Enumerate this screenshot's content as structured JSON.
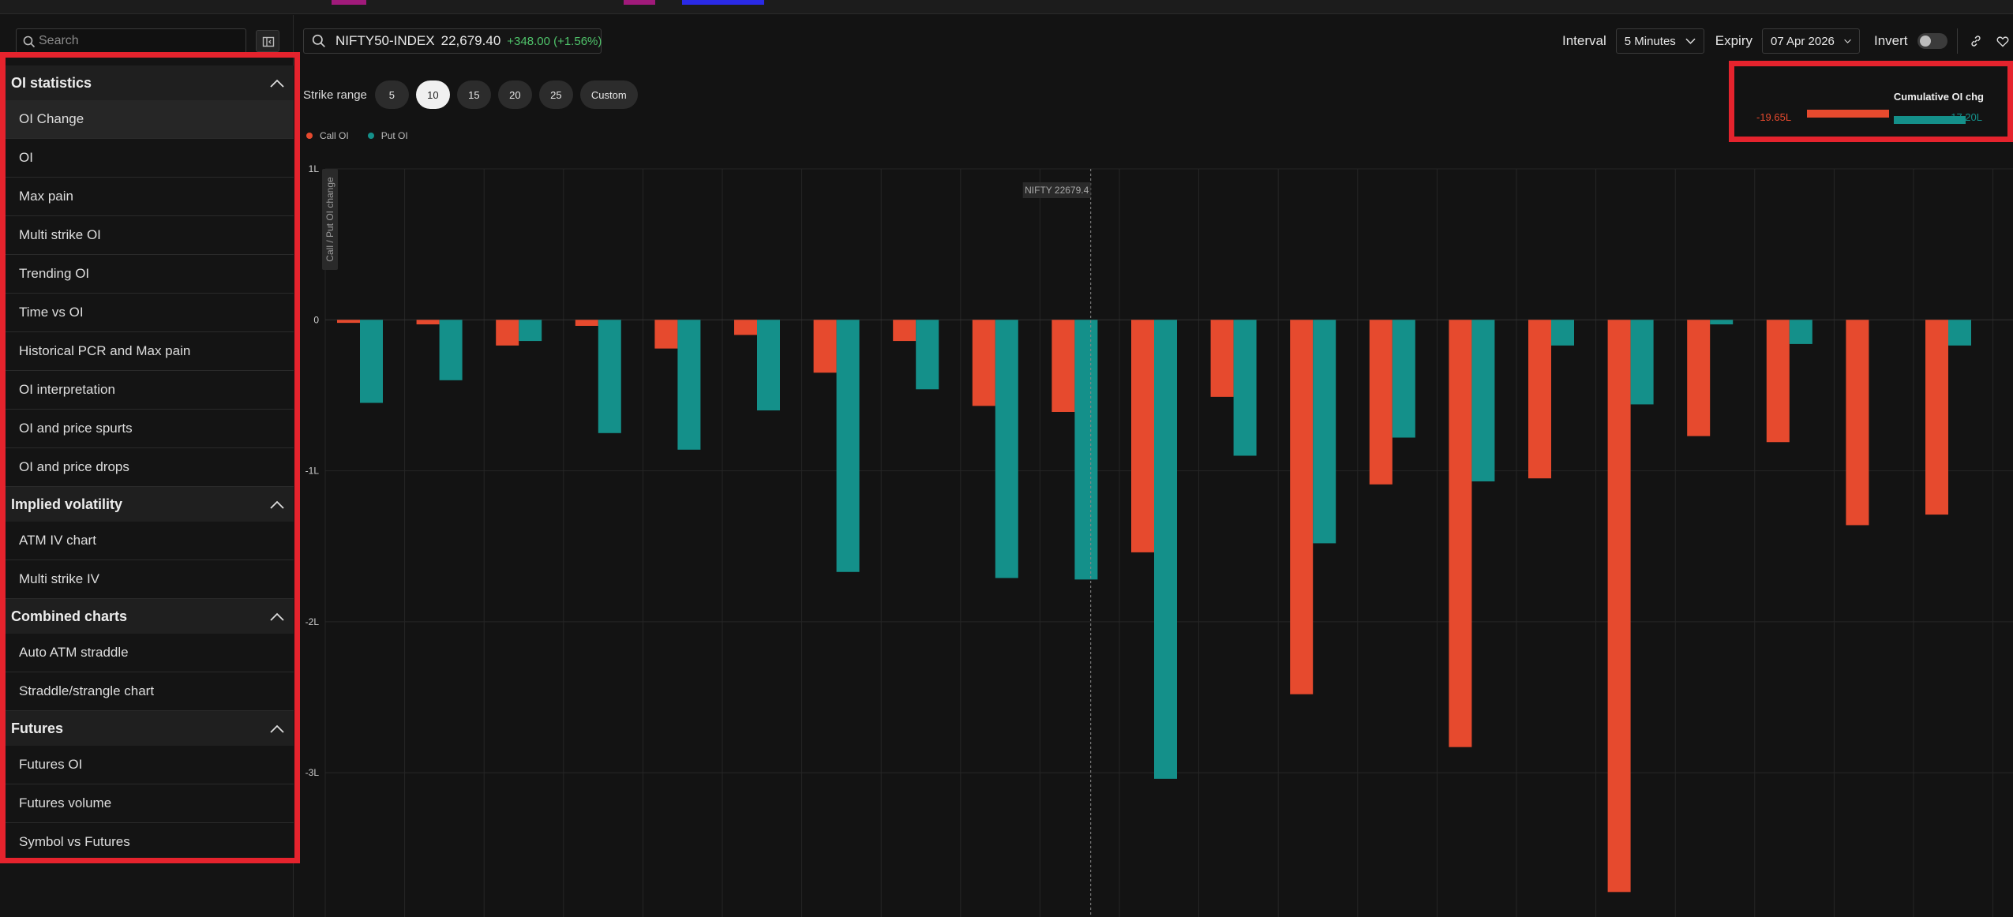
{
  "sidebar": {
    "search_placeholder": "Search",
    "sections": [
      {
        "title": "OI statistics",
        "items": [
          "OI Change",
          "OI",
          "Max pain",
          "Multi strike OI",
          "Trending OI",
          "Time vs OI",
          "Historical PCR and Max pain",
          "OI interpretation",
          "OI and price spurts",
          "OI and price drops"
        ]
      },
      {
        "title": "Implied volatility",
        "items": [
          "ATM IV chart",
          "Multi strike IV"
        ]
      },
      {
        "title": "Combined charts",
        "items": [
          "Auto ATM straddle",
          "Straddle/strangle chart"
        ]
      },
      {
        "title": "Futures",
        "items": [
          "Futures OI",
          "Futures volume",
          "Symbol vs Futures"
        ]
      }
    ],
    "active_item": "OI Change"
  },
  "header": {
    "symbol": "NIFTY50-INDEX",
    "price": "22,679.40",
    "change": "+348.00 (+1.56%)",
    "interval_label": "Interval",
    "interval_value": "5 Minutes",
    "expiry_label": "Expiry",
    "expiry_value": "07 Apr 2026",
    "invert_label": "Invert",
    "invert_on": false
  },
  "strike_range": {
    "label": "Strike range",
    "options": [
      "5",
      "10",
      "15",
      "20",
      "25",
      "Custom"
    ],
    "selected": "10"
  },
  "legend": {
    "call": "Call OI",
    "put": "Put OI"
  },
  "cumulative": {
    "title": "Cumulative OI chg",
    "call_value": "-19.65L",
    "put_value": "-17.20L",
    "call_fraction": 1.0,
    "put_fraction": 0.875
  },
  "colors": {
    "call": "#e64a2e",
    "put": "#14908a",
    "highlight": "#e5232d",
    "positive": "#4fc36a"
  },
  "chart_data": {
    "type": "bar",
    "ylabel": "Call / Put OI change",
    "ylim": [
      -4,
      1
    ],
    "yticks": [
      1,
      0,
      -1,
      -2,
      -3,
      -4
    ],
    "ytick_labels": [
      "1L",
      "0",
      "-1L",
      "-2L",
      "-3L",
      "-4L"
    ],
    "spot_label": "NIFTY 22679.4",
    "spot_after_index": 9.5,
    "categories_count": 21,
    "series": [
      {
        "name": "Call OI",
        "values": [
          -0.02,
          -0.03,
          -0.17,
          -0.04,
          -0.19,
          -0.1,
          -0.35,
          -0.14,
          -0.57,
          -0.61,
          -1.54,
          -0.51,
          -2.48,
          -1.09,
          -2.83,
          -1.05,
          -3.79,
          -0.77,
          -0.81,
          -1.36,
          -1.29
        ]
      },
      {
        "name": "Put OI",
        "values": [
          -0.55,
          -0.4,
          -0.14,
          -0.75,
          -0.86,
          -0.6,
          -1.67,
          -0.46,
          -1.71,
          -1.72,
          -3.04,
          -0.9,
          -1.48,
          -0.78,
          -1.07,
          -0.17,
          -0.56,
          -0.03,
          -0.16,
          0,
          -0.17
        ]
      }
    ]
  }
}
